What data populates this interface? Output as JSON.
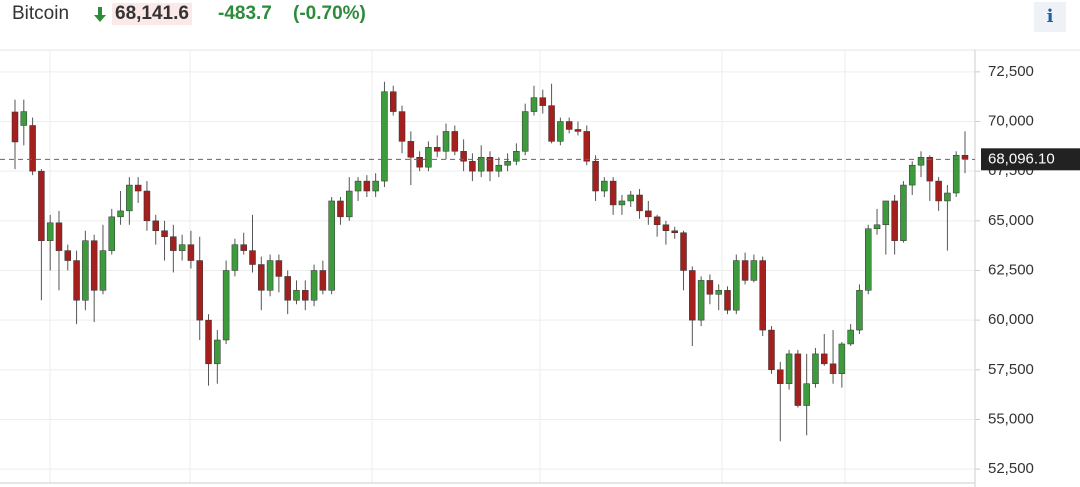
{
  "header": {
    "name": "Bitcoin",
    "price": "68,141.6",
    "change": "-483.7",
    "change_percent": "(-0.70%)",
    "info": "i"
  },
  "chart_data": {
    "type": "candlestick",
    "up_color": "#3d9a3d",
    "down_color": "#a3201f",
    "wick_color": "#555555",
    "ylim": [
      51800,
      73600
    ],
    "yticks": [
      {
        "value": 52500,
        "label": "52,500"
      },
      {
        "value": 55000,
        "label": "55,000"
      },
      {
        "value": 57500,
        "label": "57,500"
      },
      {
        "value": 60000,
        "label": "60,000"
      },
      {
        "value": 62500,
        "label": "62,500"
      },
      {
        "value": 65000,
        "label": "65,000"
      },
      {
        "value": 67500,
        "label": "67,500"
      },
      {
        "value": 70000,
        "label": "70,000"
      },
      {
        "value": 72500,
        "label": "72,500"
      }
    ],
    "grid": true,
    "last_price": {
      "value": 68096.1,
      "label": "68,096.10"
    },
    "open": [
      70480,
      69800,
      69800,
      67500,
      64000,
      64900,
      63500,
      63000,
      61000,
      64000,
      61500,
      63500,
      65200,
      65500,
      66800,
      66500,
      65000,
      64500,
      64200,
      63500,
      63800,
      63000,
      60000,
      57800,
      59000,
      62500,
      63800,
      63500,
      62800,
      61500,
      63000,
      62200,
      61000,
      61500,
      61000,
      62500,
      61500,
      66000,
      65200,
      66500,
      67000,
      66500,
      67000,
      71500,
      70500,
      69000,
      68200,
      67700,
      68700,
      68500,
      69500,
      68500,
      68000,
      67500,
      68200,
      67500,
      67800,
      68000,
      68500,
      70500,
      71200,
      70800,
      69000,
      70000,
      69600,
      69500,
      68000,
      66500,
      67000,
      65800,
      66000,
      66300,
      65500,
      65200,
      64800,
      64500,
      64400,
      62500,
      60000,
      62000,
      61300,
      61500,
      60500,
      63000,
      62000,
      63000,
      59500,
      57500,
      56800,
      58300,
      55700,
      56800,
      58300,
      57800,
      57300,
      58800,
      59500,
      61500,
      64600,
      64800,
      66000,
      64000,
      66800,
      67800,
      68200,
      67000,
      66000,
      66400,
      68300
    ],
    "high": [
      71100,
      71100,
      70200,
      67600,
      65300,
      65500,
      63800,
      63500,
      64500,
      64300,
      64800,
      65600,
      66500,
      67200,
      67200,
      67000,
      65300,
      65000,
      64800,
      64300,
      64500,
      64200,
      60300,
      59500,
      63000,
      64100,
      64400,
      65300,
      63200,
      63300,
      63300,
      62500,
      62000,
      62000,
      62800,
      63000,
      66200,
      66200,
      67200,
      67200,
      67300,
      67400,
      72000,
      71800,
      70800,
      69500,
      68500,
      69000,
      69300,
      69900,
      69800,
      69100,
      68400,
      68800,
      68500,
      68200,
      68400,
      68900,
      70900,
      71800,
      71600,
      71900,
      70200,
      70200,
      70000,
      69800,
      68300,
      67200,
      67200,
      66300,
      66500,
      66600,
      66000,
      65300,
      65000,
      64700,
      64500,
      62700,
      62200,
      62300,
      61800,
      61700,
      63300,
      63400,
      63300,
      63200,
      59700,
      57900,
      58500,
      58500,
      58300,
      58600,
      59300,
      59500,
      58900,
      59800,
      61800,
      64800,
      65600,
      66000,
      66300,
      67000,
      68000,
      68500,
      68300,
      67200,
      66800,
      68500,
      69500
    ],
    "low": [
      67600,
      68800,
      67300,
      61000,
      62500,
      61500,
      62500,
      59800,
      60500,
      59900,
      61300,
      63300,
      64800,
      64800,
      65900,
      64500,
      63800,
      63000,
      62400,
      63000,
      62600,
      59000,
      56700,
      56800,
      58800,
      62200,
      63300,
      62400,
      60500,
      61200,
      61400,
      60300,
      60800,
      60500,
      60700,
      61300,
      61300,
      64800,
      65000,
      66000,
      66200,
      66200,
      66700,
      70300,
      68400,
      66800,
      67500,
      67500,
      68200,
      68100,
      68300,
      67500,
      67000,
      67200,
      67000,
      67200,
      67500,
      67800,
      68300,
      70300,
      70400,
      68900,
      68800,
      69400,
      69300,
      67800,
      66000,
      66200,
      65300,
      65300,
      65700,
      65100,
      64800,
      64200,
      63800,
      64100,
      61500,
      58700,
      59700,
      60800,
      60500,
      60300,
      60300,
      61800,
      61900,
      59200,
      57300,
      53900,
      56500,
      55600,
      54200,
      56600,
      57700,
      56800,
      56600,
      58700,
      59300,
      61300,
      64300,
      63300,
      63300,
      63900,
      66300,
      67200,
      66000,
      65500,
      63500,
      66200,
      67400
    ],
    "close": [
      68970,
      70500,
      67500,
      64000,
      64900,
      63500,
      63000,
      61000,
      64000,
      61500,
      63500,
      65200,
      65500,
      66800,
      66500,
      65000,
      64500,
      64200,
      63500,
      63800,
      63000,
      60000,
      57800,
      59000,
      62500,
      63800,
      63500,
      62800,
      61500,
      63000,
      62200,
      61000,
      61500,
      61000,
      62500,
      61500,
      66000,
      65200,
      66500,
      67000,
      66500,
      67000,
      71500,
      70500,
      69000,
      68200,
      67700,
      68700,
      68500,
      69500,
      68500,
      68000,
      67500,
      68200,
      67500,
      67800,
      68000,
      68500,
      70500,
      71200,
      70800,
      69000,
      70000,
      69600,
      69500,
      68000,
      66500,
      67000,
      65800,
      66000,
      66300,
      65500,
      65200,
      64800,
      64500,
      64400,
      62500,
      60000,
      62000,
      61300,
      61500,
      60500,
      63000,
      62000,
      63000,
      59500,
      57500,
      56800,
      58300,
      55700,
      56800,
      58300,
      57800,
      57300,
      58800,
      59500,
      61500,
      64600,
      64800,
      66000,
      64000,
      66800,
      67800,
      68200,
      67000,
      66000,
      66400,
      68300,
      68100
    ]
  }
}
